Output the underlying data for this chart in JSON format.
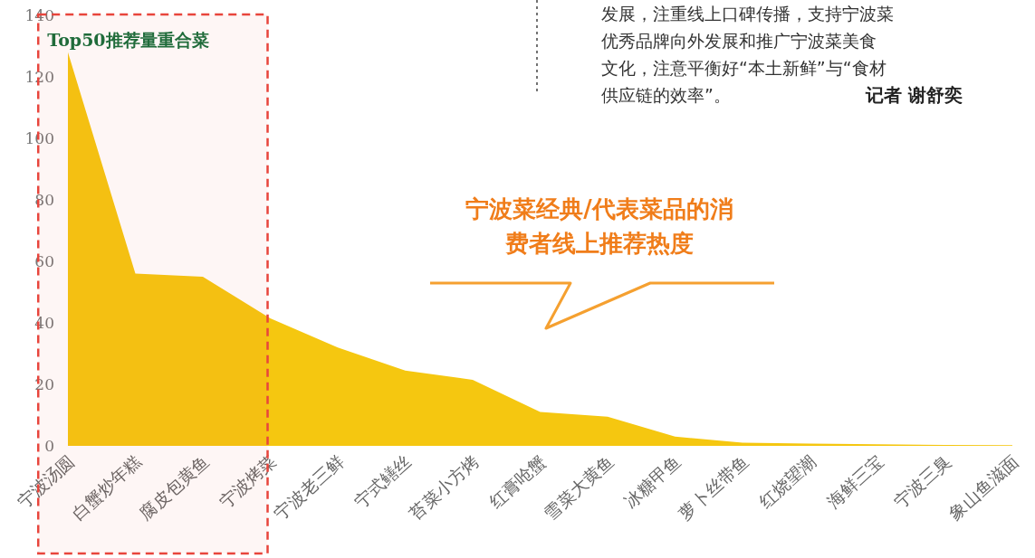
{
  "chart_data": {
    "type": "area",
    "title": "宁波菜经典/代表菜品的消费者线上推荐热度",
    "categories": [
      "宁波汤圆",
      "白蟹炒年糕",
      "腐皮包黄鱼",
      "宁波烤菜",
      "宁波老三鲜",
      "宁式鳝丝",
      "苔菜小方烤",
      "红膏呛蟹",
      "雪菜大黄鱼",
      "冰糖甲鱼",
      "萝卜丝带鱼",
      "红烧望潮",
      "海鲜三宝",
      "宁波三臭",
      "象山鱼滋面"
    ],
    "values": [
      128,
      56,
      55,
      41.5,
      32,
      24.5,
      21.5,
      11,
      9.5,
      3,
      1,
      0.7,
      0.5,
      0.3,
      0.2
    ],
    "color": "#f5c710",
    "ylim": [
      0,
      140
    ],
    "yticks": [
      0,
      20,
      40,
      60,
      80,
      100,
      120,
      140
    ],
    "grid": false,
    "bands": [
      {
        "axis": "x",
        "from": "宁波汤圆",
        "to": "宁波烤菜",
        "label": "Top50推荐量重合菜",
        "color": "#e8453c"
      }
    ],
    "annotations": [
      "发展，注重线上口碑传播，支持宁波菜",
      "优秀品牌向外发展和推广宁波菜美食",
      "文化，注意平衡好“本土新鲜”与“食材",
      "供应链的效率”。",
      "记者  谢舒奕"
    ]
  }
}
